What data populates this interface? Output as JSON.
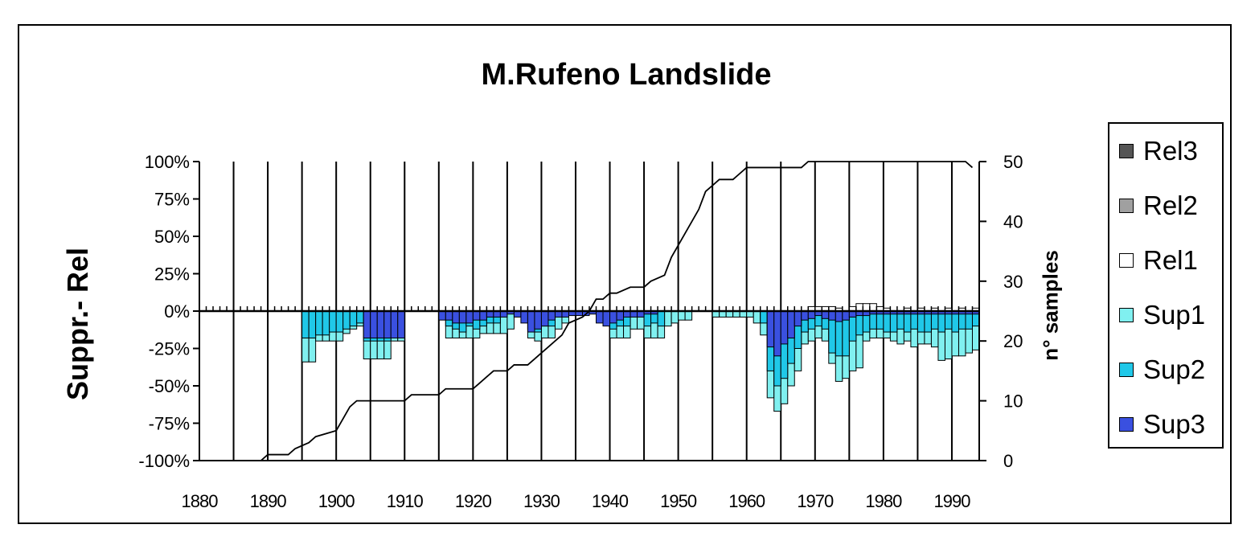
{
  "chart_data": {
    "type": "bar",
    "title": "M.Rufeno Landslide",
    "ylabel": "Suppr.- Rel",
    "y2label": "n° samples",
    "xlim": [
      1880,
      1994
    ],
    "ylim": [
      -100,
      100
    ],
    "y2lim": [
      0,
      50
    ],
    "x_ticks": [
      "1880",
      "1890",
      "1900",
      "1910",
      "1920",
      "1930",
      "1940",
      "1950",
      "1960",
      "1970",
      "1980",
      "1990"
    ],
    "y_ticks": [
      "100%",
      "75%",
      "50%",
      "25%",
      "0%",
      "-25%",
      "-50%",
      "-75%",
      "-100%"
    ],
    "y2_ticks": [
      "50",
      "40",
      "30",
      "20",
      "10",
      "0"
    ],
    "grid": "vertical",
    "legend": "right",
    "colors": {
      "Rel3": "#555555",
      "Rel2": "#a0a0a0",
      "Rel1": "#ffffff",
      "Sup1": "#80f0f0",
      "Sup2": "#20c8e8",
      "Sup3": "#3a50e0"
    },
    "series": [
      {
        "name": "Rel3",
        "values": []
      },
      {
        "name": "Rel2",
        "values": []
      },
      {
        "name": "Rel1",
        "values": [
          [
            1969,
            3
          ],
          [
            1970,
            3
          ],
          [
            1971,
            3
          ],
          [
            1972,
            3
          ],
          [
            1973,
            2
          ],
          [
            1975,
            3
          ],
          [
            1976,
            5
          ],
          [
            1977,
            5
          ],
          [
            1978,
            5
          ],
          [
            1979,
            3
          ],
          [
            1980,
            2
          ],
          [
            1983,
            2
          ],
          [
            1985,
            2
          ],
          [
            1987,
            2
          ],
          [
            1989,
            2
          ],
          [
            1991,
            2
          ],
          [
            1993,
            2
          ]
        ]
      },
      {
        "name": "Sup1",
        "values": [
          [
            1895,
            -34
          ],
          [
            1896,
            -34
          ],
          [
            1897,
            -20
          ],
          [
            1898,
            -20
          ],
          [
            1899,
            -20
          ],
          [
            1900,
            -20
          ],
          [
            1901,
            -15
          ],
          [
            1902,
            -12
          ],
          [
            1903,
            -10
          ],
          [
            1904,
            -32
          ],
          [
            1905,
            -32
          ],
          [
            1906,
            -32
          ],
          [
            1907,
            -32
          ],
          [
            1908,
            -20
          ],
          [
            1909,
            -20
          ],
          [
            1916,
            -18
          ],
          [
            1917,
            -18
          ],
          [
            1918,
            -18
          ],
          [
            1919,
            -18
          ],
          [
            1920,
            -18
          ],
          [
            1921,
            -15
          ],
          [
            1922,
            -15
          ],
          [
            1923,
            -15
          ],
          [
            1924,
            -15
          ],
          [
            1925,
            -12
          ],
          [
            1928,
            -18
          ],
          [
            1929,
            -20
          ],
          [
            1930,
            -18
          ],
          [
            1931,
            -18
          ],
          [
            1932,
            -12
          ],
          [
            1933,
            -8
          ],
          [
            1940,
            -18
          ],
          [
            1941,
            -18
          ],
          [
            1942,
            -18
          ],
          [
            1943,
            -12
          ],
          [
            1944,
            -12
          ],
          [
            1945,
            -18
          ],
          [
            1946,
            -18
          ],
          [
            1947,
            -18
          ],
          [
            1948,
            -10
          ],
          [
            1949,
            -8
          ],
          [
            1950,
            -6
          ],
          [
            1951,
            -6
          ],
          [
            1955,
            -4
          ],
          [
            1956,
            -4
          ],
          [
            1957,
            -4
          ],
          [
            1958,
            -4
          ],
          [
            1959,
            -4
          ],
          [
            1960,
            -4
          ],
          [
            1961,
            -8
          ],
          [
            1962,
            -16
          ],
          [
            1963,
            -58
          ],
          [
            1964,
            -67
          ],
          [
            1965,
            -62
          ],
          [
            1966,
            -50
          ],
          [
            1967,
            -40
          ],
          [
            1968,
            -22
          ],
          [
            1969,
            -20
          ],
          [
            1970,
            -18
          ],
          [
            1971,
            -20
          ],
          [
            1972,
            -35
          ],
          [
            1973,
            -47
          ],
          [
            1974,
            -45
          ],
          [
            1975,
            -40
          ],
          [
            1976,
            -38
          ],
          [
            1977,
            -20
          ],
          [
            1978,
            -18
          ],
          [
            1979,
            -18
          ],
          [
            1980,
            -18
          ],
          [
            1981,
            -20
          ],
          [
            1982,
            -22
          ],
          [
            1983,
            -20
          ],
          [
            1984,
            -24
          ],
          [
            1985,
            -22
          ],
          [
            1986,
            -22
          ],
          [
            1987,
            -24
          ],
          [
            1988,
            -33
          ],
          [
            1989,
            -32
          ],
          [
            1990,
            -30
          ],
          [
            1991,
            -30
          ],
          [
            1992,
            -28
          ],
          [
            1993,
            -26
          ]
        ]
      },
      {
        "name": "Sup2",
        "values": [
          [
            1895,
            -18
          ],
          [
            1896,
            -18
          ],
          [
            1897,
            -16
          ],
          [
            1898,
            -16
          ],
          [
            1899,
            -14
          ],
          [
            1900,
            -14
          ],
          [
            1901,
            -12
          ],
          [
            1902,
            -10
          ],
          [
            1903,
            -8
          ],
          [
            1904,
            -20
          ],
          [
            1905,
            -20
          ],
          [
            1906,
            -20
          ],
          [
            1907,
            -20
          ],
          [
            1916,
            -10
          ],
          [
            1917,
            -12
          ],
          [
            1918,
            -14
          ],
          [
            1919,
            -10
          ],
          [
            1920,
            -12
          ],
          [
            1921,
            -10
          ],
          [
            1922,
            -8
          ],
          [
            1923,
            -8
          ],
          [
            1928,
            -12
          ],
          [
            1929,
            -14
          ],
          [
            1930,
            -10
          ],
          [
            1931,
            -10
          ],
          [
            1940,
            -12
          ],
          [
            1941,
            -10
          ],
          [
            1942,
            -10
          ],
          [
            1945,
            -10
          ],
          [
            1946,
            -8
          ],
          [
            1947,
            -10
          ],
          [
            1962,
            -8
          ],
          [
            1963,
            -40
          ],
          [
            1964,
            -50
          ],
          [
            1965,
            -45
          ],
          [
            1966,
            -35
          ],
          [
            1967,
            -25
          ],
          [
            1968,
            -14
          ],
          [
            1969,
            -12
          ],
          [
            1970,
            -10
          ],
          [
            1971,
            -12
          ],
          [
            1972,
            -28
          ],
          [
            1973,
            -30
          ],
          [
            1974,
            -30
          ],
          [
            1975,
            -20
          ],
          [
            1976,
            -16
          ],
          [
            1977,
            -14
          ],
          [
            1978,
            -12
          ],
          [
            1979,
            -12
          ],
          [
            1980,
            -14
          ],
          [
            1981,
            -14
          ],
          [
            1982,
            -12
          ],
          [
            1983,
            -14
          ],
          [
            1984,
            -12
          ],
          [
            1985,
            -14
          ],
          [
            1986,
            -14
          ],
          [
            1987,
            -12
          ],
          [
            1988,
            -14
          ],
          [
            1989,
            -12
          ],
          [
            1990,
            -14
          ],
          [
            1991,
            -12
          ],
          [
            1992,
            -12
          ],
          [
            1993,
            -10
          ]
        ]
      },
      {
        "name": "Sup3",
        "values": [
          [
            1904,
            -18
          ],
          [
            1905,
            -18
          ],
          [
            1906,
            -18
          ],
          [
            1907,
            -18
          ],
          [
            1908,
            -18
          ],
          [
            1909,
            -18
          ],
          [
            1915,
            -6
          ],
          [
            1916,
            -6
          ],
          [
            1917,
            -8
          ],
          [
            1918,
            -8
          ],
          [
            1919,
            -8
          ],
          [
            1920,
            -6
          ],
          [
            1921,
            -6
          ],
          [
            1922,
            -4
          ],
          [
            1923,
            -4
          ],
          [
            1924,
            -4
          ],
          [
            1925,
            -2
          ],
          [
            1926,
            -4
          ],
          [
            1927,
            -8
          ],
          [
            1928,
            -14
          ],
          [
            1929,
            -12
          ],
          [
            1930,
            -10
          ],
          [
            1931,
            -6
          ],
          [
            1932,
            -4
          ],
          [
            1933,
            -4
          ],
          [
            1934,
            -3
          ],
          [
            1935,
            -3
          ],
          [
            1936,
            -3
          ],
          [
            1937,
            -2
          ],
          [
            1938,
            -8
          ],
          [
            1939,
            -10
          ],
          [
            1940,
            -8
          ],
          [
            1941,
            -6
          ],
          [
            1942,
            -4
          ],
          [
            1943,
            -4
          ],
          [
            1944,
            -4
          ],
          [
            1945,
            -2
          ],
          [
            1946,
            -2
          ],
          [
            1963,
            -24
          ],
          [
            1964,
            -30
          ],
          [
            1965,
            -22
          ],
          [
            1966,
            -18
          ],
          [
            1967,
            -10
          ],
          [
            1968,
            -6
          ],
          [
            1969,
            -5
          ],
          [
            1970,
            -3
          ],
          [
            1971,
            -5
          ],
          [
            1972,
            -6
          ],
          [
            1973,
            -7
          ],
          [
            1974,
            -6
          ],
          [
            1975,
            -4
          ],
          [
            1976,
            -3
          ],
          [
            1977,
            -3
          ],
          [
            1978,
            -2
          ],
          [
            1979,
            -2
          ],
          [
            1980,
            -2
          ],
          [
            1981,
            -2
          ],
          [
            1982,
            -2
          ],
          [
            1983,
            -2
          ],
          [
            1984,
            -2
          ],
          [
            1985,
            -2
          ],
          [
            1986,
            -2
          ],
          [
            1987,
            -2
          ],
          [
            1988,
            -2
          ],
          [
            1989,
            -2
          ],
          [
            1990,
            -2
          ],
          [
            1991,
            -2
          ],
          [
            1992,
            -2
          ],
          [
            1993,
            -2
          ]
        ]
      }
    ],
    "samples_line": {
      "name": "n° samples",
      "points": [
        [
          1880,
          0
        ],
        [
          1889,
          0
        ],
        [
          1890,
          1
        ],
        [
          1893,
          1
        ],
        [
          1894,
          2
        ],
        [
          1896,
          3
        ],
        [
          1897,
          4
        ],
        [
          1900,
          5
        ],
        [
          1901,
          7
        ],
        [
          1902,
          9
        ],
        [
          1903,
          10
        ],
        [
          1910,
          10
        ],
        [
          1911,
          11
        ],
        [
          1915,
          11
        ],
        [
          1916,
          12
        ],
        [
          1920,
          12
        ],
        [
          1921,
          13
        ],
        [
          1922,
          14
        ],
        [
          1923,
          15
        ],
        [
          1925,
          15
        ],
        [
          1926,
          16
        ],
        [
          1928,
          16
        ],
        [
          1929,
          17
        ],
        [
          1930,
          18
        ],
        [
          1931,
          19
        ],
        [
          1932,
          20
        ],
        [
          1933,
          21
        ],
        [
          1934,
          23
        ],
        [
          1936,
          24
        ],
        [
          1937,
          25
        ],
        [
          1938,
          27
        ],
        [
          1939,
          27
        ],
        [
          1940,
          28
        ],
        [
          1941,
          28
        ],
        [
          1943,
          29
        ],
        [
          1945,
          29
        ],
        [
          1946,
          30
        ],
        [
          1948,
          31
        ],
        [
          1949,
          34
        ],
        [
          1950,
          36
        ],
        [
          1951,
          38
        ],
        [
          1952,
          40
        ],
        [
          1953,
          42
        ],
        [
          1954,
          45
        ],
        [
          1955,
          46
        ],
        [
          1956,
          47
        ],
        [
          1957,
          47
        ],
        [
          1958,
          47
        ],
        [
          1959,
          48
        ],
        [
          1960,
          49
        ],
        [
          1966,
          49
        ],
        [
          1968,
          49
        ],
        [
          1969,
          50
        ],
        [
          1992,
          50
        ],
        [
          1993,
          49
        ]
      ]
    }
  }
}
